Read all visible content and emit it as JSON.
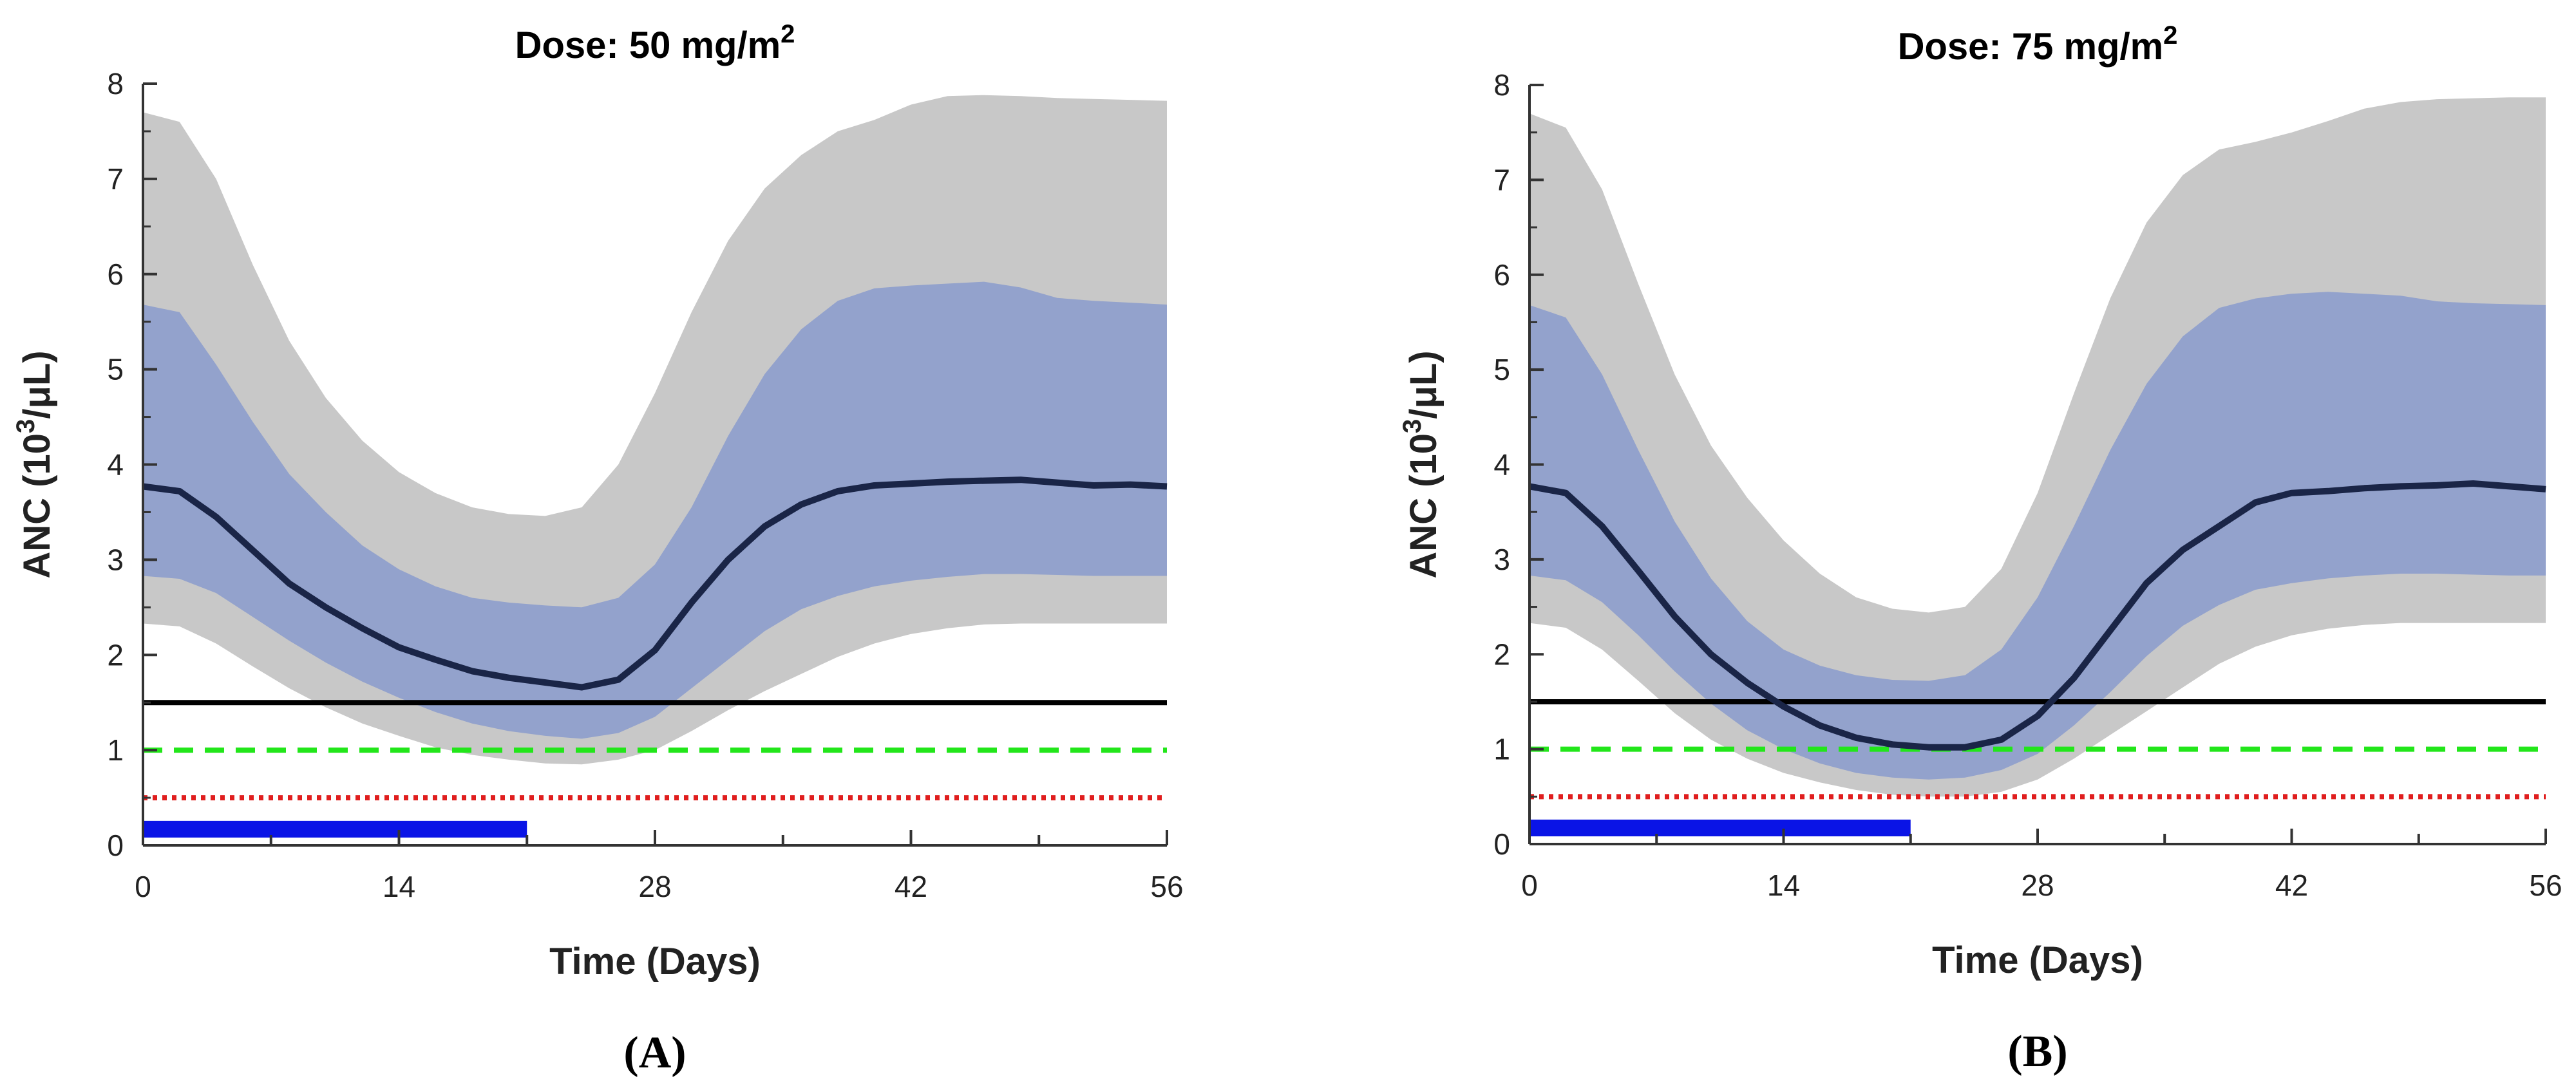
{
  "figure": {
    "panel_labels": [
      "(A)",
      "(B)"
    ]
  },
  "chart_data": [
    {
      "type": "line",
      "panel": "(A)",
      "title": "Dose: 50 mg/m",
      "title_superscript": "2",
      "xlabel": "Time (Days)",
      "ylabel": "ANC (10",
      "ylabel_superscript": "3",
      "ylabel_unit": "/μL)",
      "xlim": [
        0,
        56
      ],
      "ylim": [
        0,
        8
      ],
      "xticks": [
        0,
        14,
        28,
        42,
        56
      ],
      "yticks": [
        0,
        1,
        2,
        3,
        4,
        5,
        6,
        7,
        8
      ],
      "x": [
        0,
        2,
        4,
        6,
        8,
        10,
        12,
        14,
        16,
        18,
        20,
        22,
        24,
        26,
        28,
        30,
        32,
        34,
        36,
        38,
        40,
        42,
        44,
        46,
        48,
        50,
        52,
        54,
        56
      ],
      "series": [
        {
          "values": [
            3.77,
            3.72,
            3.45,
            3.1,
            2.75,
            2.5,
            2.28,
            2.08,
            1.95,
            1.83,
            1.76,
            1.71,
            1.66,
            1.74,
            2.05,
            2.55,
            3.0,
            3.35,
            3.58,
            3.72,
            3.78,
            3.8,
            3.82,
            3.83,
            3.84,
            3.81,
            3.78,
            3.79,
            3.77
          ]
        }
      ],
      "bands": [
        {
          "lower": [
            2.33,
            2.3,
            2.12,
            1.88,
            1.65,
            1.45,
            1.28,
            1.15,
            1.03,
            0.95,
            0.9,
            0.86,
            0.85,
            0.9,
            1.0,
            1.2,
            1.42,
            1.62,
            1.8,
            1.98,
            2.12,
            2.22,
            2.28,
            2.32,
            2.33,
            2.33,
            2.33,
            2.33,
            2.33
          ],
          "upper": [
            7.7,
            7.6,
            7.0,
            6.1,
            5.3,
            4.7,
            4.25,
            3.92,
            3.7,
            3.55,
            3.48,
            3.46,
            3.55,
            4.0,
            4.75,
            5.6,
            6.35,
            6.9,
            7.25,
            7.5,
            7.62,
            7.78,
            7.87,
            7.88,
            7.87,
            7.85,
            7.84,
            7.83,
            7.82
          ],
          "color": "#c8c8c8"
        },
        {
          "lower": [
            2.83,
            2.8,
            2.65,
            2.4,
            2.15,
            1.92,
            1.72,
            1.55,
            1.4,
            1.28,
            1.2,
            1.15,
            1.12,
            1.18,
            1.35,
            1.65,
            1.95,
            2.25,
            2.48,
            2.62,
            2.72,
            2.78,
            2.82,
            2.85,
            2.85,
            2.84,
            2.83,
            2.83,
            2.83
          ],
          "upper": [
            5.68,
            5.6,
            5.05,
            4.45,
            3.9,
            3.5,
            3.15,
            2.9,
            2.72,
            2.6,
            2.55,
            2.52,
            2.5,
            2.6,
            2.95,
            3.55,
            4.3,
            4.95,
            5.42,
            5.72,
            5.85,
            5.88,
            5.9,
            5.92,
            5.86,
            5.75,
            5.72,
            5.7,
            5.68
          ],
          "color": "#93a2cc"
        }
      ],
      "hlines": [
        {
          "y": 1.5,
          "style": "solid",
          "color": "#000000"
        },
        {
          "y": 1.0,
          "style": "dashed",
          "color": "#22e61a"
        },
        {
          "y": 0.5,
          "style": "dotted",
          "color": "#e01e1e"
        }
      ],
      "dosing_bar": {
        "x_start": 0,
        "x_end": 21,
        "y": 0.17,
        "color": "#0a14e6"
      },
      "median_color": "#1a2547"
    },
    {
      "type": "line",
      "panel": "(B)",
      "title": "Dose: 75 mg/m",
      "title_superscript": "2",
      "xlabel": "Time (Days)",
      "ylabel": "ANC (10",
      "ylabel_superscript": "3",
      "ylabel_unit": "/μL)",
      "xlim": [
        0,
        56
      ],
      "ylim": [
        0,
        8
      ],
      "xticks": [
        0,
        14,
        28,
        42,
        56
      ],
      "yticks": [
        0,
        1,
        2,
        3,
        4,
        5,
        6,
        7,
        8
      ],
      "x": [
        0,
        2,
        4,
        6,
        8,
        10,
        12,
        14,
        16,
        18,
        20,
        22,
        24,
        26,
        28,
        30,
        32,
        34,
        36,
        38,
        40,
        42,
        44,
        46,
        48,
        50,
        52,
        54,
        56
      ],
      "series": [
        {
          "values": [
            3.77,
            3.7,
            3.35,
            2.88,
            2.4,
            2.0,
            1.7,
            1.45,
            1.25,
            1.12,
            1.05,
            1.02,
            1.02,
            1.1,
            1.35,
            1.75,
            2.25,
            2.75,
            3.1,
            3.35,
            3.6,
            3.7,
            3.72,
            3.75,
            3.77,
            3.78,
            3.8,
            3.77,
            3.74
          ]
        }
      ],
      "bands": [
        {
          "lower": [
            2.33,
            2.28,
            2.05,
            1.72,
            1.38,
            1.1,
            0.9,
            0.75,
            0.65,
            0.57,
            0.52,
            0.5,
            0.5,
            0.55,
            0.68,
            0.9,
            1.15,
            1.4,
            1.65,
            1.9,
            2.08,
            2.2,
            2.27,
            2.31,
            2.33,
            2.33,
            2.33,
            2.33,
            2.33
          ],
          "upper": [
            7.7,
            7.55,
            6.9,
            5.9,
            4.95,
            4.2,
            3.65,
            3.2,
            2.85,
            2.6,
            2.48,
            2.44,
            2.5,
            2.9,
            3.7,
            4.75,
            5.75,
            6.55,
            7.05,
            7.32,
            7.4,
            7.5,
            7.62,
            7.75,
            7.82,
            7.85,
            7.86,
            7.87,
            7.87
          ],
          "color": "#c8c8c8"
        },
        {
          "lower": [
            2.83,
            2.78,
            2.55,
            2.2,
            1.82,
            1.48,
            1.2,
            1.0,
            0.85,
            0.75,
            0.7,
            0.68,
            0.7,
            0.78,
            0.95,
            1.25,
            1.6,
            1.98,
            2.3,
            2.52,
            2.68,
            2.75,
            2.8,
            2.83,
            2.85,
            2.85,
            2.84,
            2.83,
            2.83
          ],
          "upper": [
            5.68,
            5.55,
            4.95,
            4.15,
            3.4,
            2.8,
            2.35,
            2.05,
            1.88,
            1.78,
            1.73,
            1.72,
            1.78,
            2.05,
            2.6,
            3.35,
            4.15,
            4.85,
            5.35,
            5.65,
            5.75,
            5.8,
            5.82,
            5.8,
            5.78,
            5.72,
            5.7,
            5.69,
            5.68
          ],
          "color": "#93a2cc"
        }
      ],
      "hlines": [
        {
          "y": 1.5,
          "style": "solid",
          "color": "#000000"
        },
        {
          "y": 1.0,
          "style": "dashed",
          "color": "#22e61a"
        },
        {
          "y": 0.5,
          "style": "dotted",
          "color": "#e01e1e"
        }
      ],
      "dosing_bar": {
        "x_start": 0,
        "x_end": 21,
        "y": 0.17,
        "color": "#0a14e6"
      },
      "median_color": "#1a2547"
    }
  ]
}
